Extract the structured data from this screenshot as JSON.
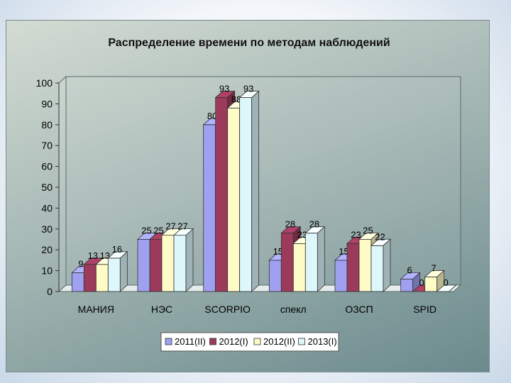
{
  "chart_data": {
    "type": "bar",
    "title": "Распределение времени по методам наблюдений",
    "categories": [
      "МАНИЯ",
      "НЭС",
      "SCORPIO",
      "спекл",
      "ОЗСП",
      "SPID"
    ],
    "series": [
      {
        "name": "2011(II)",
        "values": [
          9,
          25,
          80,
          15,
          15,
          6
        ],
        "color": "#9fa0ef"
      },
      {
        "name": "2012(I)",
        "values": [
          13,
          25,
          93,
          28,
          23,
          0
        ],
        "color": "#9b3a5a"
      },
      {
        "name": "2012(II)",
        "values": [
          13,
          27,
          88,
          23,
          25,
          7
        ],
        "color": "#fffbc6"
      },
      {
        "name": "2013(I)",
        "values": [
          16,
          27,
          93,
          28,
          22,
          0
        ],
        "color": "#ddf7fb"
      }
    ],
    "ylim": [
      0,
      100
    ],
    "yticks": [
      "0",
      "10",
      "20",
      "30",
      "40",
      "50",
      "60",
      "70",
      "80",
      "90",
      "100"
    ],
    "xlabel": "",
    "ylabel": "",
    "legend_position": "bottom",
    "grid": false,
    "style": "3d-clustered-bar"
  }
}
